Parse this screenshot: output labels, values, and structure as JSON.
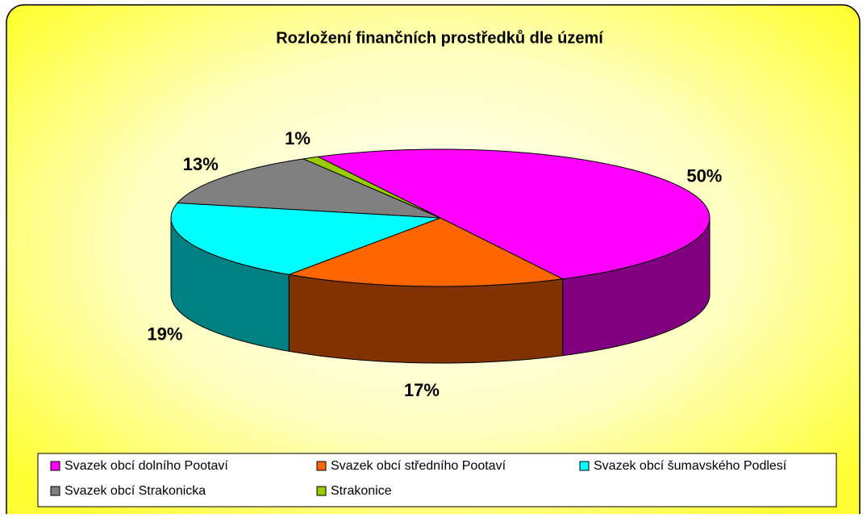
{
  "chart_data": {
    "type": "pie",
    "title": "Rozložení finančních prostředků dle území",
    "categories": [
      "Svazek obcí dolního Pootaví",
      "Svazek obcí středního Pootaví",
      "Svazek obcí šumavského Podlesí",
      "Svazek obcí Strakonicka",
      "Strakonice"
    ],
    "values": [
      50,
      17,
      19,
      13,
      1
    ],
    "value_labels": [
      "50%",
      "17%",
      "19%",
      "13%",
      "1%"
    ],
    "colors": [
      "#ff00ff",
      "#ff6600",
      "#00ffff",
      "#808080",
      "#99cc00"
    ],
    "legend": "bottom"
  }
}
